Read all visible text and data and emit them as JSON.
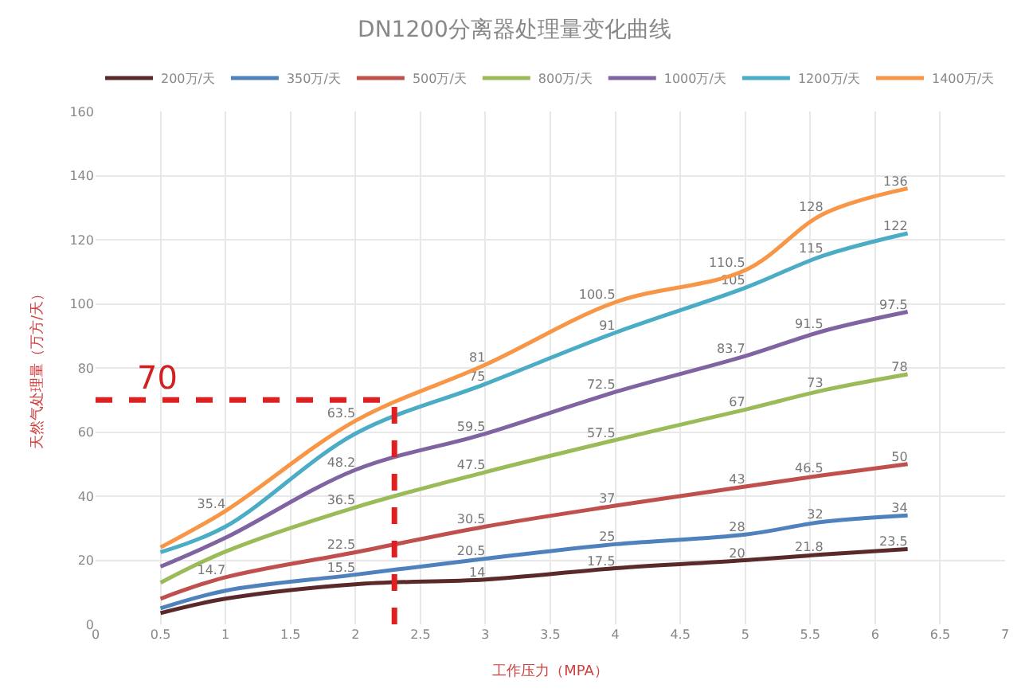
{
  "chart_data": {
    "type": "line",
    "title": "DN1200分离器处理量变化曲线",
    "xlabel": "工作压力（MPA）",
    "ylabel": "天然气处理量（万方/天）",
    "x": [
      0.5,
      1,
      2,
      3,
      4,
      5,
      5.6,
      6.25
    ],
    "series": [
      {
        "name": "200万/天",
        "color": "#5a2a2a",
        "values": [
          3.5,
          8,
          12.5,
          14,
          17.5,
          20,
          21.8,
          23.5
        ],
        "value_labels": [
          null,
          null,
          null,
          "14",
          "17.5",
          "20",
          "21.8",
          "23.5"
        ]
      },
      {
        "name": "350万/天",
        "color": "#4f81bd",
        "values": [
          5,
          10.5,
          15.5,
          20.5,
          25,
          28,
          32,
          34
        ],
        "value_labels": [
          null,
          null,
          "15.5",
          "20.5",
          "25",
          "28",
          "32",
          "34"
        ]
      },
      {
        "name": "500万/天",
        "color": "#c0504d",
        "values": [
          8,
          14.7,
          22.5,
          30.5,
          37,
          43,
          46.5,
          50
        ],
        "value_labels": [
          null,
          "14.7",
          "22.5",
          "30.5",
          "37",
          "43",
          "46.5",
          "50"
        ]
      },
      {
        "name": "800万/天",
        "color": "#9bbb59",
        "values": [
          13,
          22.7,
          36.5,
          47.5,
          57.5,
          67,
          73,
          78
        ],
        "value_labels": [
          null,
          null,
          "36.5",
          "47.5",
          "57.5",
          "67",
          "73",
          "78"
        ]
      },
      {
        "name": "1000万/天",
        "color": "#8064a2",
        "values": [
          18,
          27,
          48.2,
          59.5,
          72.5,
          83.7,
          91.5,
          97.5
        ],
        "value_labels": [
          null,
          null,
          "48.2",
          "59.5",
          "72.5",
          "83.7",
          "91.5",
          "97.5"
        ]
      },
      {
        "name": "1200万/天",
        "color": "#4bacc6",
        "values": [
          22.5,
          30.5,
          59.5,
          75,
          91,
          105,
          115,
          122
        ],
        "value_labels": [
          null,
          null,
          null,
          "75",
          "91",
          "105",
          "115",
          "122"
        ]
      },
      {
        "name": "1400万/天",
        "color": "#f79646",
        "values": [
          24,
          35.4,
          63.5,
          81,
          100.5,
          110.5,
          128,
          136
        ],
        "value_labels": [
          null,
          "35.4",
          "63.5",
          "81",
          "100.5",
          "110.5",
          "128",
          "136"
        ]
      }
    ],
    "annotations": [
      {
        "text": "70",
        "x": 0.3,
        "y": 70
      }
    ],
    "ref_lines": [
      {
        "axis": "y",
        "value": 70,
        "color": "#e02020",
        "line_style": "dashed"
      },
      {
        "axis": "x",
        "value": 2.3,
        "color": "#e02020",
        "line_style": "dashed"
      }
    ],
    "xlim": [
      0,
      7
    ],
    "xticks": [
      0,
      0.5,
      1,
      1.5,
      2,
      2.5,
      3,
      3.5,
      4,
      4.5,
      5,
      5.5,
      6,
      6.5,
      7
    ],
    "ylim": [
      0,
      160
    ],
    "yticks": [
      0,
      20,
      40,
      60,
      80,
      100,
      120,
      140,
      160
    ],
    "grid": true,
    "legend": "top",
    "marker": "none",
    "line_style": "solid"
  }
}
